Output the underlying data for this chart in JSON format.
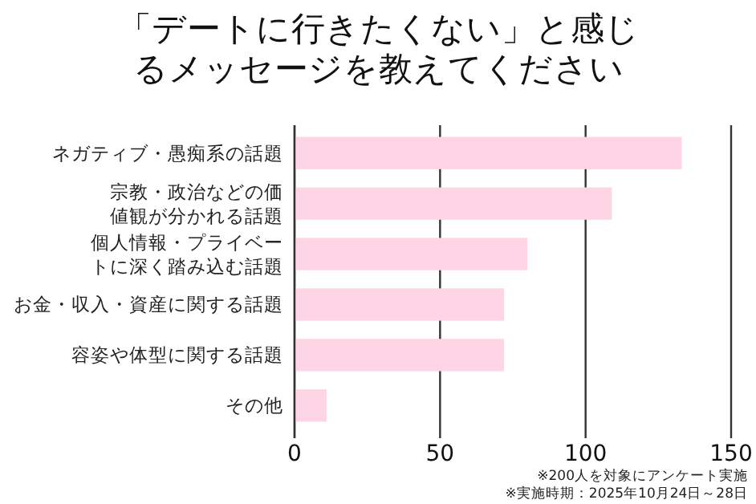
{
  "chart_data": {
    "type": "bar",
    "orientation": "horizontal",
    "title": "「デートに行きたくない」と感じるメッセージを教えてください",
    "categories": [
      "ネガティブ・愚痴系の話題",
      "宗教・政治などの価値観が分かれる話題",
      "個人情報・プライベートに深く踏み込む話題",
      "お金・収入・資産に関する話題",
      "容姿や体型に関する話題",
      "その他"
    ],
    "values": [
      133,
      109,
      80,
      72,
      72,
      11
    ],
    "color": "#fdd5e5",
    "xlim": [
      0,
      150
    ],
    "xticks": [
      0,
      50,
      100,
      150
    ],
    "grid": "x",
    "annotations": [
      "※200人を対象にアンケート実施",
      "※実施時期：2025年10月24日～28日"
    ]
  }
}
